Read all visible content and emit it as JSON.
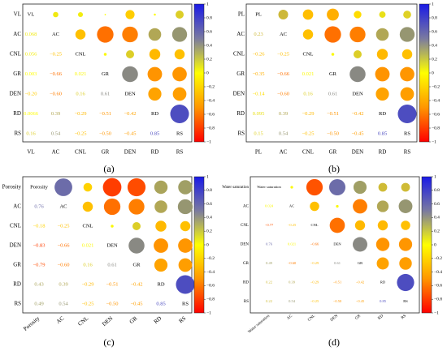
{
  "chart_data": [
    {
      "type": "heatmap",
      "subfigure_label": "(a)",
      "variables": [
        "VL",
        "AC",
        "CNL",
        "GR",
        "DEN",
        "RD",
        "RS"
      ],
      "lower_labels": [
        [
          "",
          "",
          "",
          "",
          "",
          "",
          ""
        ],
        [
          "0.068",
          "",
          "",
          "",
          "",
          "",
          ""
        ],
        [
          "0.056",
          "−0.25",
          "",
          "",
          "",
          "",
          ""
        ],
        [
          "0.003",
          "−0.66",
          "0.021",
          "",
          "",
          "",
          ""
        ],
        [
          "−0.20",
          "−0.60",
          "0.16",
          "0.61",
          "",
          "",
          ""
        ],
        [
          "0.0066",
          "0.39",
          "−0.29",
          "−0.51",
          "−0.42",
          "",
          ""
        ],
        [
          "0.16",
          "0.54",
          "−0.25",
          "−0.50",
          "−0.45",
          "0.85",
          ""
        ]
      ],
      "upper_values": [
        [
          null,
          0.07,
          0.06,
          0.0,
          -0.2,
          0.01,
          0.16
        ],
        [
          null,
          null,
          -0.25,
          -0.66,
          -0.6,
          0.39,
          0.54
        ],
        [
          null,
          null,
          null,
          0.02,
          0.16,
          -0.29,
          -0.25
        ],
        [
          null,
          null,
          null,
          null,
          0.61,
          -0.51,
          -0.5
        ],
        [
          null,
          null,
          null,
          null,
          null,
          -0.42,
          -0.45
        ],
        [
          null,
          null,
          null,
          null,
          null,
          null,
          0.85
        ],
        [
          null,
          null,
          null,
          null,
          null,
          null,
          null
        ]
      ],
      "colorbar": {
        "range": [
          -1,
          1
        ],
        "ticks": [
          "1",
          "0.8",
          "0.6",
          "0.4",
          "0.2",
          "0",
          "−0.2",
          "−0.4",
          "−0.6",
          "−0.8",
          "−1"
        ]
      }
    },
    {
      "type": "heatmap",
      "subfigure_label": "(b)",
      "variables": [
        "PL",
        "AC",
        "CNL",
        "GR",
        "DEN",
        "RD",
        "RS"
      ],
      "lower_labels": [
        [
          "",
          "",
          "",
          "",
          "",
          "",
          ""
        ],
        [
          "0.23",
          "",
          "",
          "",
          "",
          "",
          ""
        ],
        [
          "−0.26",
          "−0.25",
          "",
          "",
          "",
          "",
          ""
        ],
        [
          "−0.35",
          "−0.66",
          "0.021",
          "",
          "",
          "",
          ""
        ],
        [
          "−0.14",
          "−0.60",
          "0.16",
          "0.61",
          "",
          "",
          ""
        ],
        [
          "0.095",
          "0.39",
          "−0.29",
          "−0.51",
          "−0.42",
          "",
          ""
        ],
        [
          "0.15",
          "0.54",
          "−0.25",
          "−0.50",
          "−0.45",
          "0.85",
          ""
        ]
      ],
      "upper_values": [
        [
          null,
          0.23,
          -0.26,
          -0.35,
          -0.14,
          0.1,
          0.15
        ],
        [
          null,
          null,
          -0.25,
          -0.66,
          -0.6,
          0.39,
          0.54
        ],
        [
          null,
          null,
          null,
          0.02,
          0.16,
          -0.29,
          -0.25
        ],
        [
          null,
          null,
          null,
          null,
          0.61,
          -0.51,
          -0.5
        ],
        [
          null,
          null,
          null,
          null,
          null,
          -0.42,
          -0.45
        ],
        [
          null,
          null,
          null,
          null,
          null,
          null,
          0.85
        ],
        [
          null,
          null,
          null,
          null,
          null,
          null,
          null
        ]
      ],
      "colorbar": {
        "range": [
          -1,
          1
        ],
        "ticks": [
          "1",
          "0.8",
          "0.6",
          "0.4",
          "0.2",
          "0",
          "−0.2",
          "−0.4",
          "−0.6",
          "−0.8",
          "−1"
        ]
      }
    },
    {
      "type": "heatmap",
      "subfigure_label": "(c)",
      "variables": [
        "Porosity",
        "AC",
        "CNL",
        "DEN",
        "GR",
        "RD",
        "RS"
      ],
      "lower_labels": [
        [
          "",
          "",
          "",
          "",
          "",
          "",
          ""
        ],
        [
          "0.76",
          "",
          "",
          "",
          "",
          "",
          ""
        ],
        [
          "−0.18",
          "−0.25",
          "",
          "",
          "",
          "",
          ""
        ],
        [
          "−0.83",
          "−0.66",
          "0.021",
          "",
          "",
          "",
          ""
        ],
        [
          "−0.79",
          "−0.60",
          "0.16",
          "0.61",
          "",
          "",
          ""
        ],
        [
          "0.43",
          "0.39",
          "−0.29",
          "−0.51",
          "−0.42",
          "",
          ""
        ],
        [
          "0.49",
          "0.54",
          "−0.25",
          "−0.50",
          "−0.45",
          "0.85",
          ""
        ]
      ],
      "upper_values": [
        [
          null,
          0.76,
          -0.18,
          -0.83,
          -0.79,
          0.43,
          0.49
        ],
        [
          null,
          null,
          -0.25,
          -0.66,
          -0.6,
          0.39,
          0.54
        ],
        [
          null,
          null,
          null,
          0.02,
          0.16,
          -0.29,
          -0.25
        ],
        [
          null,
          null,
          null,
          null,
          0.61,
          -0.51,
          -0.5
        ],
        [
          null,
          null,
          null,
          null,
          null,
          -0.42,
          -0.45
        ],
        [
          null,
          null,
          null,
          null,
          null,
          null,
          0.85
        ],
        [
          null,
          null,
          null,
          null,
          null,
          null,
          null
        ]
      ],
      "colorbar": {
        "range": [
          -1,
          1
        ],
        "ticks": [
          "1",
          "0.8",
          "0.6",
          "0.4",
          "0.2",
          "0",
          "−0.2",
          "−0.4",
          "−0.6",
          "−0.8",
          "−1"
        ]
      }
    },
    {
      "type": "heatmap",
      "subfigure_label": "(d)",
      "variables": [
        "Water saturation",
        "AC",
        "CNL",
        "DEN",
        "GR",
        "RD",
        "RS"
      ],
      "lower_labels": [
        [
          "",
          "",
          "",
          "",
          "",
          "",
          ""
        ],
        [
          "0.024",
          "",
          "",
          "",
          "",
          "",
          ""
        ],
        [
          "−0.77",
          "−0.25",
          "",
          "",
          "",
          "",
          ""
        ],
        [
          "0.76",
          "0.021",
          "−0.66",
          "",
          "",
          "",
          ""
        ],
        [
          "0.49",
          "−0.60",
          "−0.29",
          "0.61",
          "",
          "",
          ""
        ],
        [
          "0.22",
          "0.39",
          "−0.29",
          "−0.51",
          "−0.42",
          "",
          ""
        ],
        [
          "0.22",
          "0.54",
          "−0.25",
          "−0.50",
          "−0.45",
          "0.85",
          ""
        ]
      ],
      "upper_values": [
        [
          null,
          0.02,
          -0.77,
          0.76,
          0.49,
          0.22,
          0.22
        ],
        [
          null,
          null,
          -0.25,
          0.02,
          -0.6,
          0.39,
          0.54
        ],
        [
          null,
          null,
          null,
          -0.66,
          -0.29,
          -0.29,
          -0.25
        ],
        [
          null,
          null,
          null,
          null,
          0.61,
          -0.51,
          -0.5
        ],
        [
          null,
          null,
          null,
          null,
          null,
          -0.42,
          -0.45
        ],
        [
          null,
          null,
          null,
          null,
          null,
          null,
          0.85
        ],
        [
          null,
          null,
          null,
          null,
          null,
          null,
          null
        ]
      ],
      "colorbar": {
        "range": [
          -1,
          1
        ],
        "ticks": [
          "1",
          "0.8",
          "0.6",
          "0.4",
          "0.2",
          "0",
          "−0.2",
          "−0.4",
          "−0.6",
          "−0.8",
          "−1"
        ]
      }
    }
  ]
}
